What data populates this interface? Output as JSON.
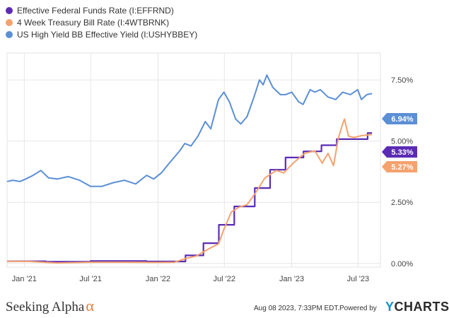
{
  "legend": [
    {
      "label": "Effective Federal Funds Rate (I:EFFRND)",
      "color": "#5b2bb5"
    },
    {
      "label": "4 Week Treasury Bill Rate (I:4WTBRNK)",
      "color": "#f5a26e"
    },
    {
      "label": "US High Yield BB Effective Yield (I:USHYBBEY)",
      "color": "#5b8fd6"
    }
  ],
  "chart_data": {
    "type": "line",
    "x_ticks": [
      "Jan '21",
      "Jul '21",
      "Jan '22",
      "Jul '22",
      "Jan '23",
      "Jul '23"
    ],
    "x_tick_positions": [
      "2021-01-01",
      "2021-07-01",
      "2022-01-01",
      "2022-07-01",
      "2023-01-01",
      "2023-07-01"
    ],
    "y_ticks": [
      "0.00%",
      "2.50%",
      "5.00%",
      "7.50%"
    ],
    "y_tick_values": [
      0,
      2.5,
      5,
      7.5
    ],
    "ylim": [
      -0.15,
      8.6
    ],
    "xlim": [
      "2020-11-15",
      "2023-08-31"
    ],
    "series": [
      {
        "name": "Effective Federal Funds Rate (I:EFFRND)",
        "color": "#5b2bb5",
        "step": true,
        "points": [
          [
            "2020-11-15",
            0.09
          ],
          [
            "2021-03-01",
            0.07
          ],
          [
            "2021-07-01",
            0.1
          ],
          [
            "2021-12-01",
            0.08
          ],
          [
            "2022-03-17",
            0.33
          ],
          [
            "2022-05-05",
            0.83
          ],
          [
            "2022-06-16",
            1.58
          ],
          [
            "2022-07-28",
            2.33
          ],
          [
            "2022-09-22",
            3.08
          ],
          [
            "2022-11-03",
            3.83
          ],
          [
            "2022-12-15",
            4.33
          ],
          [
            "2023-02-02",
            4.58
          ],
          [
            "2023-03-23",
            4.83
          ],
          [
            "2023-05-04",
            5.08
          ],
          [
            "2023-07-27",
            5.33
          ],
          [
            "2023-08-08",
            5.33
          ]
        ]
      },
      {
        "name": "4 Week Treasury Bill Rate (I:4WTBRNK)",
        "color": "#f5a26e",
        "step": false,
        "points": [
          [
            "2020-11-15",
            0.09
          ],
          [
            "2021-01-15",
            0.08
          ],
          [
            "2021-04-01",
            0.02
          ],
          [
            "2021-07-01",
            0.05
          ],
          [
            "2021-10-01",
            0.05
          ],
          [
            "2022-01-01",
            0.04
          ],
          [
            "2022-02-15",
            0.05
          ],
          [
            "2022-03-17",
            0.2
          ],
          [
            "2022-04-15",
            0.3
          ],
          [
            "2022-05-20",
            0.6
          ],
          [
            "2022-06-15",
            0.8
          ],
          [
            "2022-06-30",
            1.4
          ],
          [
            "2022-07-20",
            2.1
          ],
          [
            "2022-08-10",
            2.3
          ],
          [
            "2022-09-01",
            2.4
          ],
          [
            "2022-09-25",
            2.9
          ],
          [
            "2022-10-20",
            3.5
          ],
          [
            "2022-11-20",
            3.8
          ],
          [
            "2022-12-10",
            3.7
          ],
          [
            "2023-01-05",
            4.1
          ],
          [
            "2023-02-05",
            4.5
          ],
          [
            "2023-03-05",
            4.6
          ],
          [
            "2023-03-25",
            4.1
          ],
          [
            "2023-04-10",
            4.5
          ],
          [
            "2023-04-25",
            4.0
          ],
          [
            "2023-05-08",
            5.1
          ],
          [
            "2023-05-20",
            5.7
          ],
          [
            "2023-05-25",
            5.9
          ],
          [
            "2023-06-05",
            5.2
          ],
          [
            "2023-06-20",
            5.15
          ],
          [
            "2023-07-10",
            5.22
          ],
          [
            "2023-08-08",
            5.27
          ]
        ]
      },
      {
        "name": "US High Yield BB Effective Yield (I:USHYBBEY)",
        "color": "#5b8fd6",
        "step": false,
        "points": [
          [
            "2020-11-15",
            3.35
          ],
          [
            "2020-12-01",
            3.4
          ],
          [
            "2020-12-20",
            3.35
          ],
          [
            "2021-01-05",
            3.45
          ],
          [
            "2021-01-25",
            3.6
          ],
          [
            "2021-02-15",
            3.8
          ],
          [
            "2021-03-08",
            3.5
          ],
          [
            "2021-04-01",
            3.45
          ],
          [
            "2021-05-01",
            3.55
          ],
          [
            "2021-06-01",
            3.4
          ],
          [
            "2021-07-01",
            3.15
          ],
          [
            "2021-08-01",
            3.15
          ],
          [
            "2021-09-01",
            3.3
          ],
          [
            "2021-10-01",
            3.4
          ],
          [
            "2021-11-01",
            3.25
          ],
          [
            "2021-12-01",
            3.6
          ],
          [
            "2021-12-20",
            3.45
          ],
          [
            "2022-01-10",
            3.7
          ],
          [
            "2022-02-01",
            4.1
          ],
          [
            "2022-03-01",
            4.6
          ],
          [
            "2022-03-15",
            4.9
          ],
          [
            "2022-04-01",
            4.8
          ],
          [
            "2022-04-20",
            5.2
          ],
          [
            "2022-05-10",
            5.8
          ],
          [
            "2022-05-25",
            5.5
          ],
          [
            "2022-06-15",
            6.7
          ],
          [
            "2022-06-30",
            7.0
          ],
          [
            "2022-07-15",
            6.6
          ],
          [
            "2022-08-01",
            5.9
          ],
          [
            "2022-08-15",
            5.7
          ],
          [
            "2022-09-01",
            6.0
          ],
          [
            "2022-09-20",
            6.8
          ],
          [
            "2022-10-05",
            7.5
          ],
          [
            "2022-10-15",
            7.3
          ],
          [
            "2022-10-25",
            7.7
          ],
          [
            "2022-11-10",
            7.2
          ],
          [
            "2022-12-01",
            6.9
          ],
          [
            "2022-12-15",
            6.9
          ],
          [
            "2023-01-01",
            7.0
          ],
          [
            "2023-01-20",
            6.6
          ],
          [
            "2023-02-01",
            6.5
          ],
          [
            "2023-02-20",
            7.1
          ],
          [
            "2023-03-05",
            7.0
          ],
          [
            "2023-03-20",
            7.1
          ],
          [
            "2023-04-10",
            6.8
          ],
          [
            "2023-05-01",
            6.7
          ],
          [
            "2023-05-20",
            7.0
          ],
          [
            "2023-06-10",
            6.9
          ],
          [
            "2023-06-30",
            7.1
          ],
          [
            "2023-07-10",
            6.7
          ],
          [
            "2023-07-25",
            6.9
          ],
          [
            "2023-08-08",
            6.94
          ]
        ]
      }
    ],
    "end_labels": [
      {
        "text": "6.94%",
        "color": "#5b8fd6",
        "value": 6.94
      },
      {
        "text": "5.33%",
        "color": "#5b2bb5",
        "value": 5.33
      },
      {
        "text": "5.27%",
        "color": "#f5a26e",
        "value": 5.27
      }
    ]
  },
  "footer": {
    "brand_text": "Seeking Alpha",
    "brand_symbol": "α",
    "date": "Aug 08 2023, 7:33PM EDT.",
    "powered": "Powered by",
    "ycharts_y": "Y",
    "ycharts_rest": "CHARTS"
  }
}
